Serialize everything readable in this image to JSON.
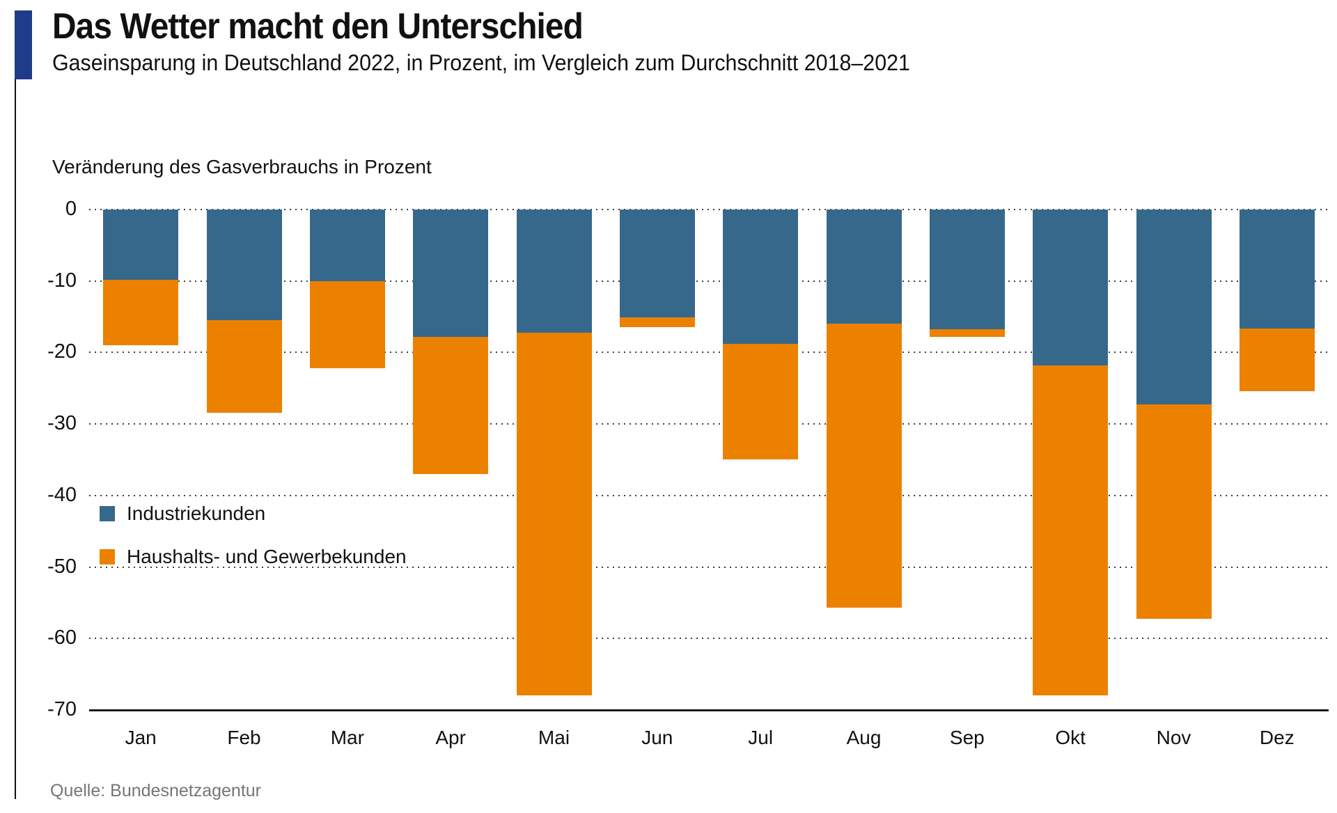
{
  "header": {
    "title": "Das Wetter macht den Unterschied",
    "subtitle": "Gaseinsparung in Deutschland 2022, in Prozent, im Vergleich zum Durchschnitt 2018–2021"
  },
  "source": "Quelle: Bundesnetzagentur",
  "colors": {
    "accent": "#1E3C87",
    "industry_blue": "#36688B",
    "household_orange": "#EC8100",
    "axis": "#1A1A1A",
    "source_gray": "#767676"
  },
  "legend": [
    {
      "label": "Industriekunden",
      "color": "#36688B"
    },
    {
      "label": "Haushalts- und Gewerbekunden",
      "color": "#EC8100"
    }
  ],
  "chart_data": {
    "type": "bar",
    "stacked": true,
    "title": "Das Wetter macht den Unterschied",
    "subtitle": "Gaseinsparung in Deutschland 2022, in Prozent, im Vergleich zum Durchschnitt 2018–2021",
    "ylabel": "Veränderung des Gasverbrauchs in Prozent",
    "xlabel": "",
    "ylim": [
      -70,
      0
    ],
    "yticks": [
      0,
      -10,
      -20,
      -30,
      -40,
      -50,
      -60,
      -70
    ],
    "grid": "dotted-horizontal",
    "legend_position": "inside-left",
    "categories": [
      "Jan",
      "Feb",
      "Mar",
      "Apr",
      "Mai",
      "Jun",
      "Jul",
      "Aug",
      "Sep",
      "Okt",
      "Nov",
      "Dez"
    ],
    "series": [
      {
        "name": "Industriekunden",
        "color": "#36688B",
        "values": [
          -9.8,
          -15.5,
          -10.0,
          -17.8,
          -17.2,
          -15.1,
          -18.8,
          -16.0,
          -16.7,
          -21.8,
          -27.3,
          -16.6
        ]
      },
      {
        "name": "Haushalts- und Gewerbekunden",
        "color": "#EC8100",
        "values": [
          -9.2,
          -12.9,
          -12.2,
          -19.2,
          -50.8,
          -1.4,
          -16.2,
          -39.7,
          -1.1,
          -46.2,
          -29.9,
          -8.8
        ]
      }
    ],
    "stack_totals": [
      -19.0,
      -28.4,
      -22.2,
      -37.0,
      -68.0,
      -16.5,
      -35.0,
      -55.7,
      -17.8,
      -68.0,
      -57.2,
      -25.4
    ]
  }
}
